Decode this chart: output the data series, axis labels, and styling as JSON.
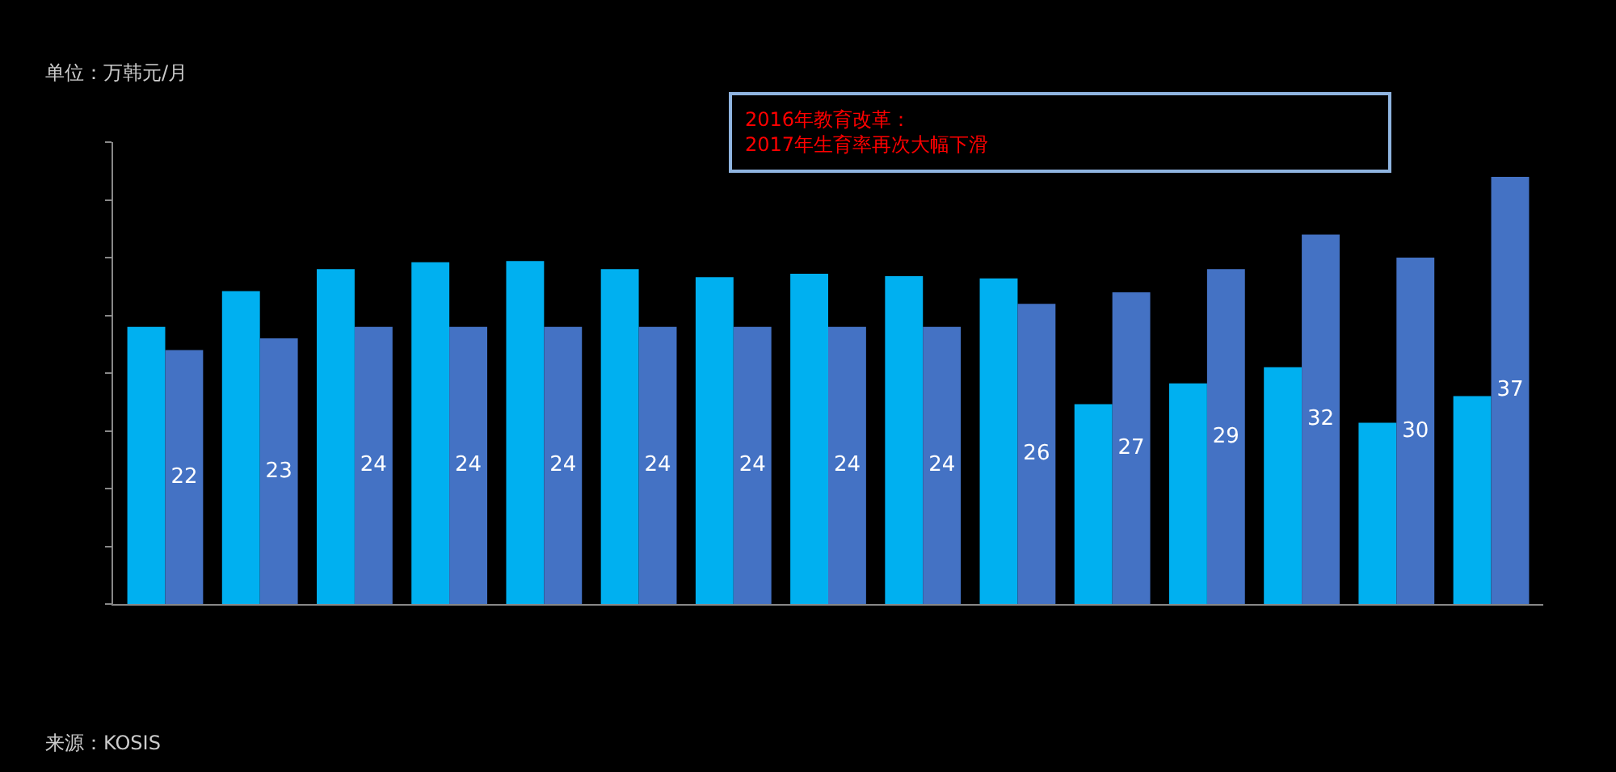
{
  "chart_data": {
    "type": "bar",
    "ylabel": "单位：万韩元/月",
    "categories": [
      null,
      null,
      null,
      null,
      null,
      null,
      null,
      null,
      null,
      null,
      null,
      null,
      null,
      null,
      null
    ],
    "series": [
      {
        "color": "#00b0f0",
        "values": [
          24.0,
          27.1,
          29.0,
          29.6,
          29.7,
          29.0,
          28.3,
          28.6,
          28.4,
          28.2,
          17.3,
          19.1,
          20.5,
          15.7,
          18.0
        ]
      },
      {
        "color": "#4472c4",
        "values": [
          22,
          23,
          24,
          24,
          24,
          24,
          24,
          24,
          24,
          26,
          27,
          29,
          32,
          30,
          37
        ],
        "value_labels": [
          "22",
          "23",
          "24",
          "24",
          "24",
          "24",
          "24",
          "24",
          "24",
          "26",
          "27",
          "29",
          "32",
          "30",
          "37"
        ]
      }
    ],
    "ylim": [
      0,
      40
    ],
    "yticks": [
      {
        "value": 0,
        "label": null
      },
      {
        "value": 5,
        "label": null
      },
      {
        "value": 10,
        "label": null
      },
      {
        "value": 15,
        "label": null
      },
      {
        "value": 20,
        "label": null
      },
      {
        "value": 25,
        "label": null
      },
      {
        "value": 30,
        "label": null
      },
      {
        "value": 35,
        "label": null
      },
      {
        "value": 40,
        "label": null
      }
    ],
    "grid": false,
    "annotations": [
      "2016年教育改革：\n2017年生育率再次大幅下滑",
      "来源：KOSIS"
    ]
  }
}
